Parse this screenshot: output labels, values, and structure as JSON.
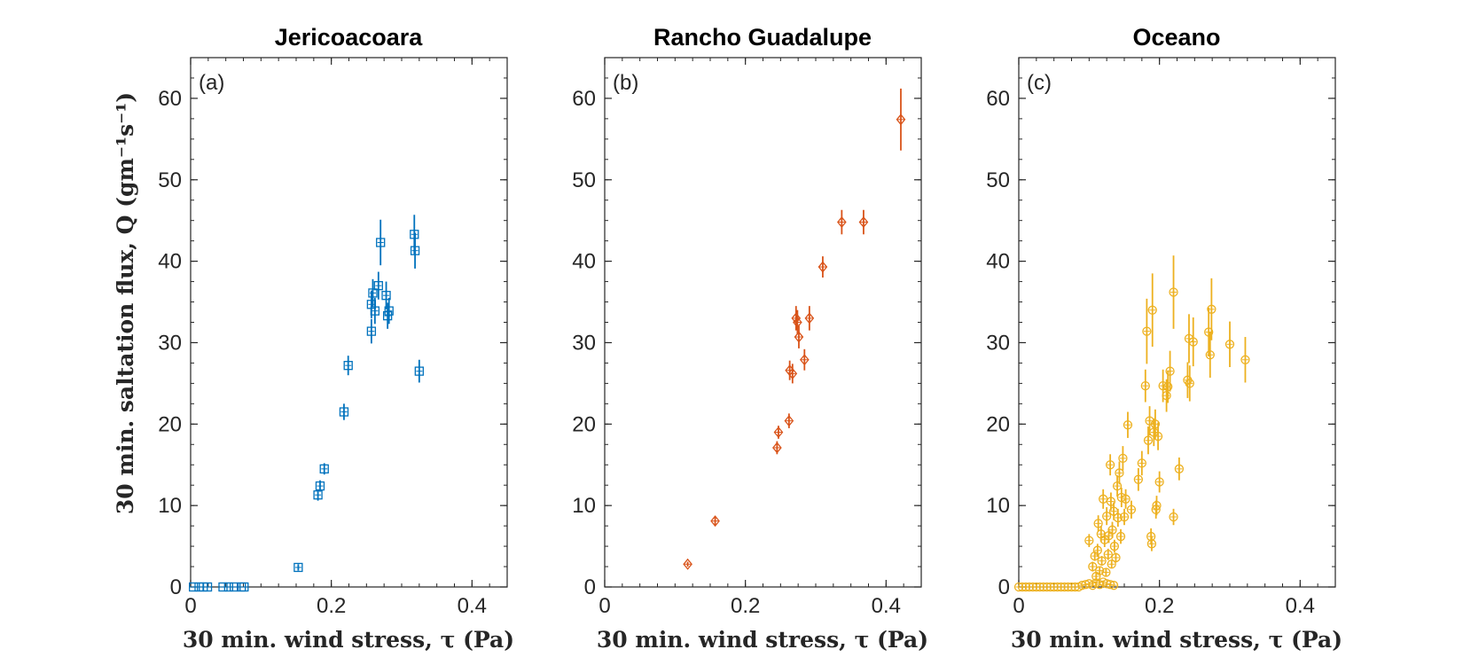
{
  "chart_data": [
    {
      "type": "scatter",
      "title": "Jericoacoara",
      "panel_label": "(a)",
      "xlabel": "30 min. wind stress, τ (Pa)",
      "ylabel": "30 min. saltation flux, Q (gm⁻¹s⁻¹)",
      "xlim": [
        0,
        0.45
      ],
      "ylim": [
        0,
        65
      ],
      "xticks": [
        0,
        0.2,
        0.4
      ],
      "yticks": [
        0,
        10,
        20,
        30,
        40,
        50,
        60
      ],
      "grid": false,
      "marker": "square",
      "color": "#0072BD",
      "points": [
        {
          "x": 0.004,
          "y": 0,
          "err": 0
        },
        {
          "x": 0.012,
          "y": 0,
          "err": 0
        },
        {
          "x": 0.018,
          "y": 0,
          "err": 0
        },
        {
          "x": 0.024,
          "y": 0,
          "err": 0
        },
        {
          "x": 0.046,
          "y": 0,
          "err": 0
        },
        {
          "x": 0.054,
          "y": 0,
          "err": 0
        },
        {
          "x": 0.062,
          "y": 0,
          "err": 0
        },
        {
          "x": 0.072,
          "y": 0,
          "err": 0
        },
        {
          "x": 0.076,
          "y": 0,
          "err": 0
        },
        {
          "x": 0.153,
          "y": 2.4,
          "err": 0.4
        },
        {
          "x": 0.181,
          "y": 11.3,
          "err": 0.7
        },
        {
          "x": 0.184,
          "y": 12.4,
          "err": 0.7
        },
        {
          "x": 0.19,
          "y": 14.5,
          "err": 0.7
        },
        {
          "x": 0.218,
          "y": 21.5,
          "err": 1.0
        },
        {
          "x": 0.224,
          "y": 27.2,
          "err": 1.2
        },
        {
          "x": 0.257,
          "y": 31.4,
          "err": 1.5
        },
        {
          "x": 0.257,
          "y": 34.7,
          "err": 1.7
        },
        {
          "x": 0.259,
          "y": 36.1,
          "err": 1.7
        },
        {
          "x": 0.262,
          "y": 33.9,
          "err": 1.6
        },
        {
          "x": 0.267,
          "y": 37.0,
          "err": 1.7
        },
        {
          "x": 0.27,
          "y": 42.3,
          "err": 2.8
        },
        {
          "x": 0.278,
          "y": 35.8,
          "err": 1.7
        },
        {
          "x": 0.28,
          "y": 33.3,
          "err": 1.6
        },
        {
          "x": 0.282,
          "y": 33.9,
          "err": 1.6
        },
        {
          "x": 0.318,
          "y": 43.3,
          "err": 2.4
        },
        {
          "x": 0.319,
          "y": 41.3,
          "err": 2.2
        },
        {
          "x": 0.325,
          "y": 26.5,
          "err": 1.4
        }
      ]
    },
    {
      "type": "scatter",
      "title": "Rancho Guadalupe",
      "panel_label": "(b)",
      "xlabel": "30 min. wind stress, τ (Pa)",
      "xlim": [
        0,
        0.45
      ],
      "ylim": [
        0,
        65
      ],
      "xticks": [
        0,
        0.2,
        0.4
      ],
      "yticks": [
        0,
        10,
        20,
        30,
        40,
        50,
        60
      ],
      "grid": false,
      "marker": "diamond",
      "color": "#D95319",
      "points": [
        {
          "x": 0.118,
          "y": 2.8,
          "err": 0.3
        },
        {
          "x": 0.157,
          "y": 8.1,
          "err": 0.6
        },
        {
          "x": 0.245,
          "y": 17.1,
          "err": 0.8
        },
        {
          "x": 0.247,
          "y": 19.0,
          "err": 0.8
        },
        {
          "x": 0.262,
          "y": 20.4,
          "err": 0.9
        },
        {
          "x": 0.263,
          "y": 26.6,
          "err": 1.2
        },
        {
          "x": 0.267,
          "y": 26.2,
          "err": 1.2
        },
        {
          "x": 0.272,
          "y": 33.0,
          "err": 1.5
        },
        {
          "x": 0.274,
          "y": 32.5,
          "err": 1.5
        },
        {
          "x": 0.276,
          "y": 30.7,
          "err": 1.4
        },
        {
          "x": 0.284,
          "y": 27.9,
          "err": 1.3
        },
        {
          "x": 0.291,
          "y": 33.0,
          "err": 1.5
        },
        {
          "x": 0.31,
          "y": 39.3,
          "err": 1.3
        },
        {
          "x": 0.337,
          "y": 44.8,
          "err": 1.5
        },
        {
          "x": 0.368,
          "y": 44.8,
          "err": 1.5
        },
        {
          "x": 0.421,
          "y": 57.4,
          "err": 3.8
        }
      ]
    },
    {
      "type": "scatter",
      "title": "Oceano",
      "panel_label": "(c)",
      "xlabel": "30 min. wind stress, τ (Pa)",
      "xlim": [
        0,
        0.45
      ],
      "ylim": [
        0,
        65
      ],
      "xticks": [
        0,
        0.2,
        0.4
      ],
      "yticks": [
        0,
        10,
        20,
        30,
        40,
        50,
        60
      ],
      "grid": false,
      "marker": "circle",
      "color": "#EDB120",
      "points": [
        {
          "x": 0.0,
          "y": 0,
          "err": 0
        },
        {
          "x": 0.005,
          "y": 0,
          "err": 0
        },
        {
          "x": 0.01,
          "y": 0,
          "err": 0
        },
        {
          "x": 0.015,
          "y": 0,
          "err": 0
        },
        {
          "x": 0.02,
          "y": 0,
          "err": 0
        },
        {
          "x": 0.025,
          "y": 0,
          "err": 0
        },
        {
          "x": 0.03,
          "y": 0,
          "err": 0
        },
        {
          "x": 0.035,
          "y": 0,
          "err": 0
        },
        {
          "x": 0.04,
          "y": 0,
          "err": 0
        },
        {
          "x": 0.045,
          "y": 0,
          "err": 0
        },
        {
          "x": 0.05,
          "y": 0,
          "err": 0
        },
        {
          "x": 0.055,
          "y": 0,
          "err": 0
        },
        {
          "x": 0.06,
          "y": 0,
          "err": 0
        },
        {
          "x": 0.065,
          "y": 0,
          "err": 0
        },
        {
          "x": 0.07,
          "y": 0,
          "err": 0
        },
        {
          "x": 0.075,
          "y": 0,
          "err": 0
        },
        {
          "x": 0.08,
          "y": 0,
          "err": 0
        },
        {
          "x": 0.085,
          "y": 0,
          "err": 0
        },
        {
          "x": 0.09,
          "y": 0.2,
          "err": 0
        },
        {
          "x": 0.095,
          "y": 0.3,
          "err": 0
        },
        {
          "x": 0.1,
          "y": 0.4,
          "err": 0.2
        },
        {
          "x": 0.105,
          "y": 0.2,
          "err": 0
        },
        {
          "x": 0.11,
          "y": 0.5,
          "err": 0.2
        },
        {
          "x": 0.115,
          "y": 0.3,
          "err": 0
        },
        {
          "x": 0.12,
          "y": 0.6,
          "err": 0.2
        },
        {
          "x": 0.125,
          "y": 0.4,
          "err": 0
        },
        {
          "x": 0.13,
          "y": 0.3,
          "err": 0
        },
        {
          "x": 0.135,
          "y": 0.2,
          "err": 0
        },
        {
          "x": 0.1,
          "y": 5.7,
          "err": 0.8
        },
        {
          "x": 0.105,
          "y": 2.5,
          "err": 0.6
        },
        {
          "x": 0.108,
          "y": 3.8,
          "err": 0.6
        },
        {
          "x": 0.11,
          "y": 1.3,
          "err": 0.5
        },
        {
          "x": 0.112,
          "y": 4.5,
          "err": 0.8
        },
        {
          "x": 0.113,
          "y": 7.8,
          "err": 1.0
        },
        {
          "x": 0.115,
          "y": 2.0,
          "err": 0.5
        },
        {
          "x": 0.117,
          "y": 6.5,
          "err": 1.0
        },
        {
          "x": 0.118,
          "y": 3.2,
          "err": 0.6
        },
        {
          "x": 0.12,
          "y": 10.8,
          "err": 1.2
        },
        {
          "x": 0.122,
          "y": 5.8,
          "err": 0.9
        },
        {
          "x": 0.124,
          "y": 1.8,
          "err": 0.5
        },
        {
          "x": 0.125,
          "y": 8.7,
          "err": 1.1
        },
        {
          "x": 0.127,
          "y": 4.0,
          "err": 0.7
        },
        {
          "x": 0.128,
          "y": 6.3,
          "err": 0.9
        },
        {
          "x": 0.13,
          "y": 15.0,
          "err": 1.3
        },
        {
          "x": 0.131,
          "y": 10.5,
          "err": 1.1
        },
        {
          "x": 0.132,
          "y": 2.8,
          "err": 0.5
        },
        {
          "x": 0.133,
          "y": 7.0,
          "err": 1.0
        },
        {
          "x": 0.135,
          "y": 9.3,
          "err": 1.1
        },
        {
          "x": 0.136,
          "y": 5.0,
          "err": 0.8
        },
        {
          "x": 0.138,
          "y": 3.6,
          "err": 0.6
        },
        {
          "x": 0.14,
          "y": 12.4,
          "err": 1.3
        },
        {
          "x": 0.141,
          "y": 8.5,
          "err": 1.1
        },
        {
          "x": 0.143,
          "y": 14.0,
          "err": 1.4
        },
        {
          "x": 0.145,
          "y": 6.2,
          "err": 0.9
        },
        {
          "x": 0.146,
          "y": 11.0,
          "err": 1.2
        },
        {
          "x": 0.148,
          "y": 15.8,
          "err": 1.5
        },
        {
          "x": 0.15,
          "y": 8.6,
          "err": 1.0
        },
        {
          "x": 0.152,
          "y": 10.8,
          "err": 1.2
        },
        {
          "x": 0.155,
          "y": 19.9,
          "err": 1.6
        },
        {
          "x": 0.16,
          "y": 9.5,
          "err": 1.1
        },
        {
          "x": 0.17,
          "y": 13.2,
          "err": 1.4
        },
        {
          "x": 0.175,
          "y": 15.2,
          "err": 1.5
        },
        {
          "x": 0.18,
          "y": 24.7,
          "err": 2.0
        },
        {
          "x": 0.182,
          "y": 31.4,
          "err": 4.0
        },
        {
          "x": 0.184,
          "y": 18.0,
          "err": 1.7
        },
        {
          "x": 0.186,
          "y": 20.4,
          "err": 1.8
        },
        {
          "x": 0.188,
          "y": 6.2,
          "err": 1.0
        },
        {
          "x": 0.189,
          "y": 5.3,
          "err": 0.9
        },
        {
          "x": 0.19,
          "y": 34.0,
          "err": 4.5
        },
        {
          "x": 0.192,
          "y": 19.0,
          "err": 1.7
        },
        {
          "x": 0.194,
          "y": 20.0,
          "err": 1.8
        },
        {
          "x": 0.195,
          "y": 9.5,
          "err": 1.1
        },
        {
          "x": 0.196,
          "y": 10.0,
          "err": 1.2
        },
        {
          "x": 0.198,
          "y": 18.5,
          "err": 1.7
        },
        {
          "x": 0.2,
          "y": 12.9,
          "err": 1.3
        },
        {
          "x": 0.205,
          "y": 24.7,
          "err": 2.0
        },
        {
          "x": 0.21,
          "y": 23.5,
          "err": 2.0
        },
        {
          "x": 0.212,
          "y": 24.6,
          "err": 2.0
        },
        {
          "x": 0.215,
          "y": 26.5,
          "err": 2.5
        },
        {
          "x": 0.22,
          "y": 8.6,
          "err": 1.0
        },
        {
          "x": 0.22,
          "y": 36.2,
          "err": 4.5
        },
        {
          "x": 0.228,
          "y": 14.5,
          "err": 1.4
        },
        {
          "x": 0.24,
          "y": 25.4,
          "err": 2.2
        },
        {
          "x": 0.242,
          "y": 30.5,
          "err": 3.0
        },
        {
          "x": 0.243,
          "y": 25.0,
          "err": 2.2
        },
        {
          "x": 0.248,
          "y": 30.1,
          "err": 3.0
        },
        {
          "x": 0.27,
          "y": 31.3,
          "err": 3.0
        },
        {
          "x": 0.272,
          "y": 28.5,
          "err": 2.8
        },
        {
          "x": 0.274,
          "y": 34.1,
          "err": 3.8
        },
        {
          "x": 0.3,
          "y": 29.8,
          "err": 2.8
        },
        {
          "x": 0.322,
          "y": 27.9,
          "err": 2.8
        }
      ]
    }
  ]
}
